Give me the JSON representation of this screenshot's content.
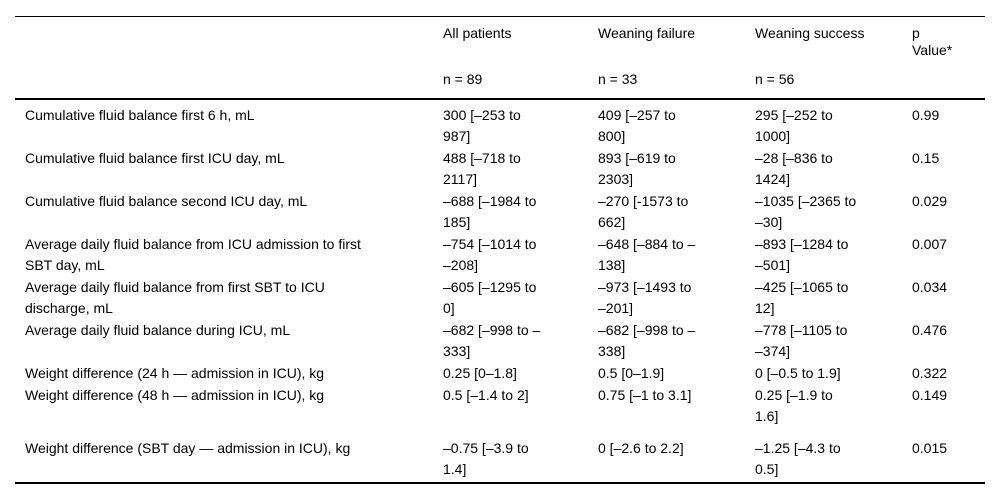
{
  "table": {
    "columns": [
      {
        "title": "All patients",
        "n": "n = 89"
      },
      {
        "title": "Weaning failure",
        "n": "n = 33"
      },
      {
        "title": "Weaning success",
        "n": "n = 56"
      },
      {
        "title": "p\nValue*",
        "n": ""
      }
    ],
    "rows": [
      {
        "label": "Cumulative fluid balance first 6 h, mL",
        "all": "300 [–253 to 987]",
        "failure": "409 [–257 to 800]",
        "success": "295 [–252 to 1000]",
        "p": "0.99"
      },
      {
        "label": "Cumulative fluid balance first ICU day, mL",
        "all": "488 [–718 to 2117]",
        "failure": "893 [–619 to 2303]",
        "success": "–28 [–836 to 1424]",
        "p": "0.15"
      },
      {
        "label": "Cumulative fluid balance second ICU day, mL",
        "all": "–688 [–1984 to 185]",
        "failure": "–270 [-1573 to 662]",
        "success": "–1035 [–2365 to –30]",
        "p": "0.029"
      },
      {
        "label": "Average daily fluid balance from ICU admission to first SBT day, mL",
        "all": "–754 [–1014 to –208]",
        "failure": "–648 [–884 to –138]",
        "success": "–893 [–1284 to –501]",
        "p": "0.007"
      },
      {
        "label": "Average daily fluid balance from first SBT to ICU discharge, mL",
        "all": "–605 [–1295 to 0]",
        "failure": "–973 [–1493 to –201]",
        "success": "–425 [–1065 to 12]",
        "p": "0.034"
      },
      {
        "label": "Average daily fluid balance during ICU, mL",
        "all": "–682 [–998 to –333]",
        "failure": "–682 [–998 to –338]",
        "success": "–778 [–1105 to –374]",
        "p": "0.476"
      },
      {
        "label": "Weight difference (24 h — admission in ICU), kg",
        "all": "0.25 [0–1.8]",
        "failure": "0.5 [0–1.9]",
        "success": "0 [–0.5 to 1.9]",
        "p": "0.322"
      },
      {
        "label": "Weight difference (48 h — admission in ICU), kg",
        "all": "0.5 [–1.4 to 2]",
        "failure": "0.75 [–1 to 3.1]",
        "success": "0.25 [–1.9 to 1.6]",
        "p": "0.149"
      },
      {
        "label": "Weight difference (SBT day — admission in ICU), kg",
        "all": "–0.75 [–3.9 to 1.4]",
        "failure": "0 [–2.6 to 2.2]",
        "success": "–1.25 [–4.3 to 0.5]",
        "p": "0.015"
      }
    ]
  }
}
